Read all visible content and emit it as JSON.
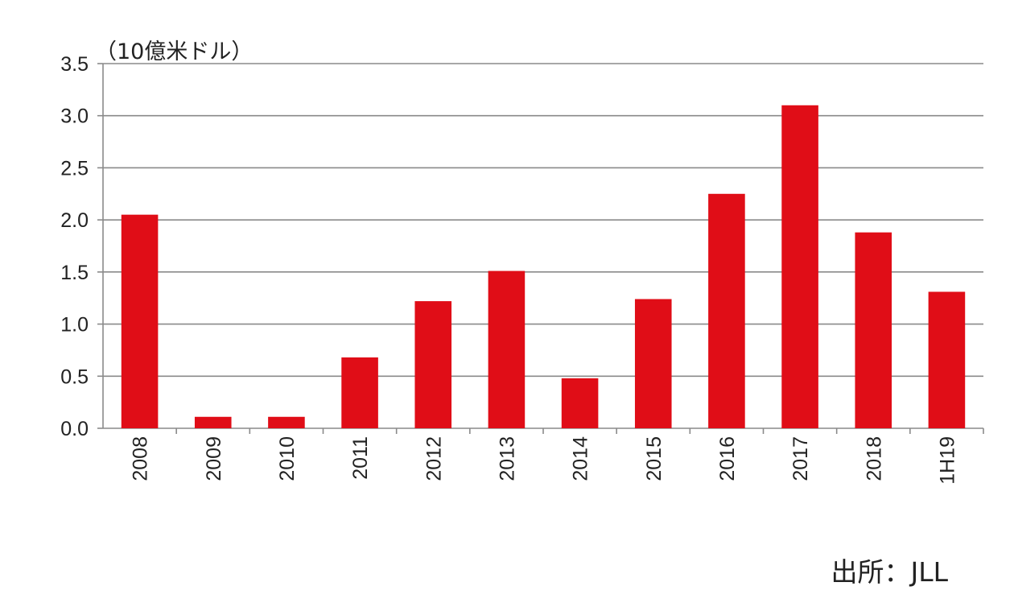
{
  "chart_data": {
    "type": "bar",
    "unit_label": "（10億米ドル）",
    "source": "出所：JLL",
    "categories": [
      "2008",
      "2009",
      "2010",
      "2011",
      "2012",
      "2013",
      "2014",
      "2015",
      "2016",
      "2017",
      "2018",
      "1H19"
    ],
    "values": [
      2.05,
      0.11,
      0.11,
      0.68,
      1.22,
      1.51,
      0.48,
      1.24,
      2.25,
      3.1,
      1.88,
      1.31
    ],
    "ylim": [
      0,
      3.5
    ],
    "yticks": [
      "0.0",
      "0.5",
      "1.0",
      "1.5",
      "2.0",
      "2.5",
      "3.0",
      "3.5"
    ],
    "bar_color": "#e00d17",
    "grid": true,
    "legend": "none"
  }
}
